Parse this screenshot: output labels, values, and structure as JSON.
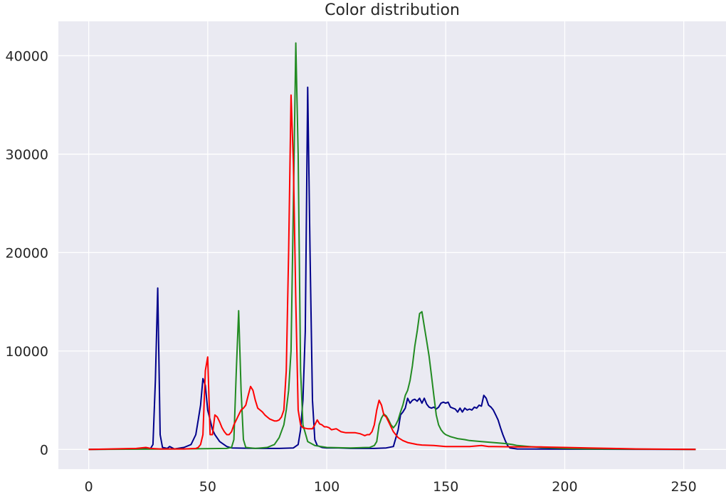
{
  "chart_data": {
    "type": "line",
    "title": "Color distribution",
    "xlabel": "",
    "ylabel": "",
    "xlim": [
      -12.75,
      267.75
    ],
    "ylim": [
      -2000,
      43500
    ],
    "xticks": [
      0,
      50,
      100,
      150,
      200,
      250
    ],
    "yticks": [
      0,
      10000,
      20000,
      30000,
      40000
    ],
    "grid": true,
    "background": "#eaeaf2",
    "grid_color": "#ffffff",
    "series": [
      {
        "color": "#00008b",
        "points": [
          [
            0,
            0
          ],
          [
            20,
            50
          ],
          [
            26,
            100
          ],
          [
            27,
            500
          ],
          [
            28,
            7000
          ],
          [
            29,
            16400
          ],
          [
            30,
            1500
          ],
          [
            31,
            200
          ],
          [
            33,
            100
          ],
          [
            34,
            300
          ],
          [
            36,
            50
          ],
          [
            40,
            200
          ],
          [
            43,
            500
          ],
          [
            45,
            1500
          ],
          [
            46,
            3000
          ],
          [
            47,
            4500
          ],
          [
            48,
            7200
          ],
          [
            49,
            6500
          ],
          [
            50,
            4000
          ],
          [
            51,
            3000
          ],
          [
            52,
            2000
          ],
          [
            53,
            1500
          ],
          [
            55,
            800
          ],
          [
            58,
            300
          ],
          [
            60,
            150
          ],
          [
            70,
            100
          ],
          [
            80,
            100
          ],
          [
            86,
            150
          ],
          [
            88,
            500
          ],
          [
            89,
            2000
          ],
          [
            90,
            5000
          ],
          [
            91,
            12000
          ],
          [
            92,
            36800
          ],
          [
            93,
            20000
          ],
          [
            94,
            5000
          ],
          [
            95,
            1000
          ],
          [
            96,
            400
          ],
          [
            98,
            200
          ],
          [
            100,
            150
          ],
          [
            105,
            150
          ],
          [
            110,
            100
          ],
          [
            115,
            100
          ],
          [
            120,
            100
          ],
          [
            125,
            150
          ],
          [
            128,
            300
          ],
          [
            130,
            2000
          ],
          [
            131,
            3500
          ],
          [
            132,
            3800
          ],
          [
            133,
            4200
          ],
          [
            134,
            5200
          ],
          [
            135,
            4700
          ],
          [
            136,
            5000
          ],
          [
            137,
            5100
          ],
          [
            138,
            4900
          ],
          [
            139,
            5200
          ],
          [
            140,
            4700
          ],
          [
            141,
            5200
          ],
          [
            142,
            4600
          ],
          [
            143,
            4300
          ],
          [
            144,
            4200
          ],
          [
            145,
            4300
          ],
          [
            146,
            4100
          ],
          [
            147,
            4300
          ],
          [
            148,
            4700
          ],
          [
            149,
            4800
          ],
          [
            150,
            4700
          ],
          [
            151,
            4800
          ],
          [
            152,
            4300
          ],
          [
            153,
            4200
          ],
          [
            154,
            4100
          ],
          [
            155,
            3800
          ],
          [
            156,
            4200
          ],
          [
            157,
            3800
          ],
          [
            158,
            4200
          ],
          [
            159,
            4000
          ],
          [
            160,
            4100
          ],
          [
            161,
            4000
          ],
          [
            162,
            4300
          ],
          [
            163,
            4200
          ],
          [
            164,
            4500
          ],
          [
            165,
            4400
          ],
          [
            166,
            5500
          ],
          [
            167,
            5200
          ],
          [
            168,
            4500
          ],
          [
            169,
            4300
          ],
          [
            170,
            4000
          ],
          [
            171,
            3500
          ],
          [
            172,
            3000
          ],
          [
            173,
            2200
          ],
          [
            174,
            1500
          ],
          [
            175,
            900
          ],
          [
            176,
            400
          ],
          [
            177,
            150
          ],
          [
            180,
            50
          ],
          [
            200,
            30
          ],
          [
            255,
            0
          ]
        ]
      },
      {
        "color": "#228b22",
        "points": [
          [
            0,
            0
          ],
          [
            40,
            50
          ],
          [
            58,
            100
          ],
          [
            60,
            200
          ],
          [
            61,
            1000
          ],
          [
            62,
            8000
          ],
          [
            63,
            14100
          ],
          [
            64,
            6000
          ],
          [
            65,
            1000
          ],
          [
            66,
            200
          ],
          [
            70,
            100
          ],
          [
            75,
            200
          ],
          [
            78,
            500
          ],
          [
            80,
            1200
          ],
          [
            82,
            2500
          ],
          [
            83,
            4000
          ],
          [
            84,
            6000
          ],
          [
            85,
            10000
          ],
          [
            86,
            25000
          ],
          [
            87,
            41300
          ],
          [
            88,
            30000
          ],
          [
            89,
            8000
          ],
          [
            90,
            2500
          ],
          [
            92,
            800
          ],
          [
            95,
            400
          ],
          [
            100,
            200
          ],
          [
            110,
            150
          ],
          [
            118,
            200
          ],
          [
            120,
            400
          ],
          [
            121,
            800
          ],
          [
            122,
            2500
          ],
          [
            123,
            3200
          ],
          [
            124,
            3600
          ],
          [
            125,
            3400
          ],
          [
            126,
            3000
          ],
          [
            127,
            2500
          ],
          [
            128,
            2200
          ],
          [
            129,
            2500
          ],
          [
            130,
            3000
          ],
          [
            131,
            3800
          ],
          [
            132,
            4500
          ],
          [
            133,
            5500
          ],
          [
            134,
            6000
          ],
          [
            135,
            7000
          ],
          [
            136,
            8500
          ],
          [
            137,
            10500
          ],
          [
            138,
            12000
          ],
          [
            139,
            13800
          ],
          [
            140,
            14000
          ],
          [
            141,
            12500
          ],
          [
            142,
            11000
          ],
          [
            143,
            9500
          ],
          [
            144,
            7500
          ],
          [
            145,
            5500
          ],
          [
            146,
            3500
          ],
          [
            147,
            2500
          ],
          [
            148,
            2000
          ],
          [
            149,
            1700
          ],
          [
            150,
            1500
          ],
          [
            152,
            1300
          ],
          [
            155,
            1100
          ],
          [
            158,
            1000
          ],
          [
            160,
            900
          ],
          [
            165,
            800
          ],
          [
            170,
            700
          ],
          [
            175,
            600
          ],
          [
            178,
            500
          ],
          [
            180,
            400
          ],
          [
            185,
            300
          ],
          [
            190,
            200
          ],
          [
            200,
            100
          ],
          [
            210,
            50
          ],
          [
            255,
            0
          ]
        ]
      },
      {
        "color": "#ff0000",
        "points": [
          [
            0,
            0
          ],
          [
            20,
            100
          ],
          [
            24,
            200
          ],
          [
            26,
            100
          ],
          [
            30,
            50
          ],
          [
            40,
            50
          ],
          [
            45,
            100
          ],
          [
            46,
            200
          ],
          [
            47,
            500
          ],
          [
            48,
            1500
          ],
          [
            49,
            8000
          ],
          [
            50,
            9400
          ],
          [
            51,
            1500
          ],
          [
            52,
            1500
          ],
          [
            53,
            3500
          ],
          [
            54,
            3300
          ],
          [
            55,
            2800
          ],
          [
            56,
            2200
          ],
          [
            57,
            1800
          ],
          [
            58,
            1500
          ],
          [
            59,
            1500
          ],
          [
            60,
            1800
          ],
          [
            61,
            2500
          ],
          [
            62,
            3000
          ],
          [
            63,
            3500
          ],
          [
            64,
            4000
          ],
          [
            65,
            4200
          ],
          [
            66,
            4500
          ],
          [
            67,
            5500
          ],
          [
            68,
            6400
          ],
          [
            69,
            6000
          ],
          [
            70,
            5000
          ],
          [
            71,
            4200
          ],
          [
            72,
            4000
          ],
          [
            73,
            3800
          ],
          [
            74,
            3500
          ],
          [
            75,
            3300
          ],
          [
            76,
            3100
          ],
          [
            77,
            3000
          ],
          [
            78,
            2900
          ],
          [
            79,
            2900
          ],
          [
            80,
            3000
          ],
          [
            81,
            3300
          ],
          [
            82,
            4000
          ],
          [
            83,
            8000
          ],
          [
            84,
            20000
          ],
          [
            85,
            36000
          ],
          [
            86,
            29000
          ],
          [
            87,
            15000
          ],
          [
            88,
            4000
          ],
          [
            89,
            2500
          ],
          [
            90,
            2200
          ],
          [
            92,
            2100
          ],
          [
            94,
            2100
          ],
          [
            95,
            2500
          ],
          [
            96,
            3000
          ],
          [
            97,
            2600
          ],
          [
            98,
            2500
          ],
          [
            99,
            2300
          ],
          [
            100,
            2300
          ],
          [
            101,
            2200
          ],
          [
            102,
            2000
          ],
          [
            104,
            2100
          ],
          [
            106,
            1800
          ],
          [
            108,
            1700
          ],
          [
            110,
            1700
          ],
          [
            112,
            1700
          ],
          [
            114,
            1600
          ],
          [
            115,
            1500
          ],
          [
            116,
            1400
          ],
          [
            117,
            1500
          ],
          [
            118,
            1500
          ],
          [
            119,
            1800
          ],
          [
            120,
            2500
          ],
          [
            121,
            4000
          ],
          [
            122,
            5000
          ],
          [
            123,
            4500
          ],
          [
            124,
            3500
          ],
          [
            125,
            3300
          ],
          [
            126,
            2800
          ],
          [
            127,
            2300
          ],
          [
            128,
            1800
          ],
          [
            129,
            1500
          ],
          [
            130,
            1200
          ],
          [
            132,
            900
          ],
          [
            134,
            700
          ],
          [
            136,
            600
          ],
          [
            138,
            500
          ],
          [
            140,
            450
          ],
          [
            145,
            400
          ],
          [
            150,
            300
          ],
          [
            160,
            300
          ],
          [
            165,
            400
          ],
          [
            168,
            300
          ],
          [
            170,
            300
          ],
          [
            180,
            250
          ],
          [
            190,
            250
          ],
          [
            200,
            200
          ],
          [
            210,
            150
          ],
          [
            220,
            100
          ],
          [
            230,
            50
          ],
          [
            255,
            0
          ]
        ]
      }
    ]
  }
}
